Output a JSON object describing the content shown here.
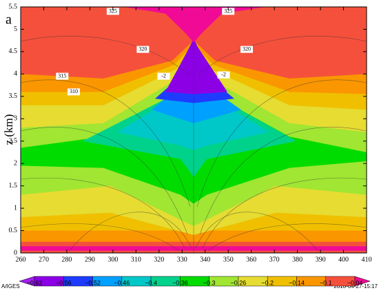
{
  "chart_data": {
    "type": "contour",
    "title": "a",
    "ylabel": "z (km)",
    "xlim": [
      260,
      410
    ],
    "xticks": [
      260,
      270,
      280,
      290,
      300,
      310,
      320,
      330,
      340,
      350,
      360,
      370,
      380,
      390,
      400,
      410
    ],
    "ylim": [
      0,
      5.5
    ],
    "yticks": [
      0,
      0.5,
      1,
      1.5,
      2,
      2.5,
      3,
      3.5,
      4,
      4.5,
      5,
      5.5
    ],
    "colorbar": {
      "levels": [
        {
          "value": -0.62,
          "label": "−0.62"
        },
        {
          "value": -0.56,
          "label": "−0.56"
        },
        {
          "value": -0.52,
          "label": "−0.52"
        },
        {
          "value": -0.46,
          "label": "−0.46"
        },
        {
          "value": -0.4,
          "label": "−0.4"
        },
        {
          "value": -0.36,
          "label": "−0.36"
        },
        {
          "value": -0.3,
          "label": "−0.3"
        },
        {
          "value": -0.26,
          "label": "−0.26"
        },
        {
          "value": -0.2,
          "label": "−0.2"
        },
        {
          "value": -0.14,
          "label": "−0.14"
        },
        {
          "value": -0.1,
          "label": "−0.1"
        },
        {
          "value": -0.04,
          "label": "−0.04"
        }
      ],
      "colors": [
        "#a020f0",
        "#8c00e6",
        "#1e3cff",
        "#00a0ff",
        "#00c8c8",
        "#00d28c",
        "#00dc00",
        "#a0e632",
        "#e6dc32",
        "#f0c000",
        "#fa9600",
        "#f5503c",
        "#f00a96"
      ]
    },
    "annotations": [
      {
        "text": "325",
        "x": 300,
        "y": 5.4
      },
      {
        "text": "325",
        "x": 350,
        "y": 5.4
      },
      {
        "text": "320",
        "x": 313,
        "y": 4.55
      },
      {
        "text": "320",
        "x": 358,
        "y": 4.55
      },
      {
        "text": "315",
        "x": 278,
        "y": 3.95
      },
      {
        "text": "310",
        "x": 283,
        "y": 3.6
      },
      {
        "text": "-2",
        "x": 322,
        "y": 3.95
      },
      {
        "text": "-2",
        "x": 348,
        "y": 3.98
      }
    ],
    "footer_left": "A/IGES",
    "footer_right": "2018-04-27-15:17"
  }
}
